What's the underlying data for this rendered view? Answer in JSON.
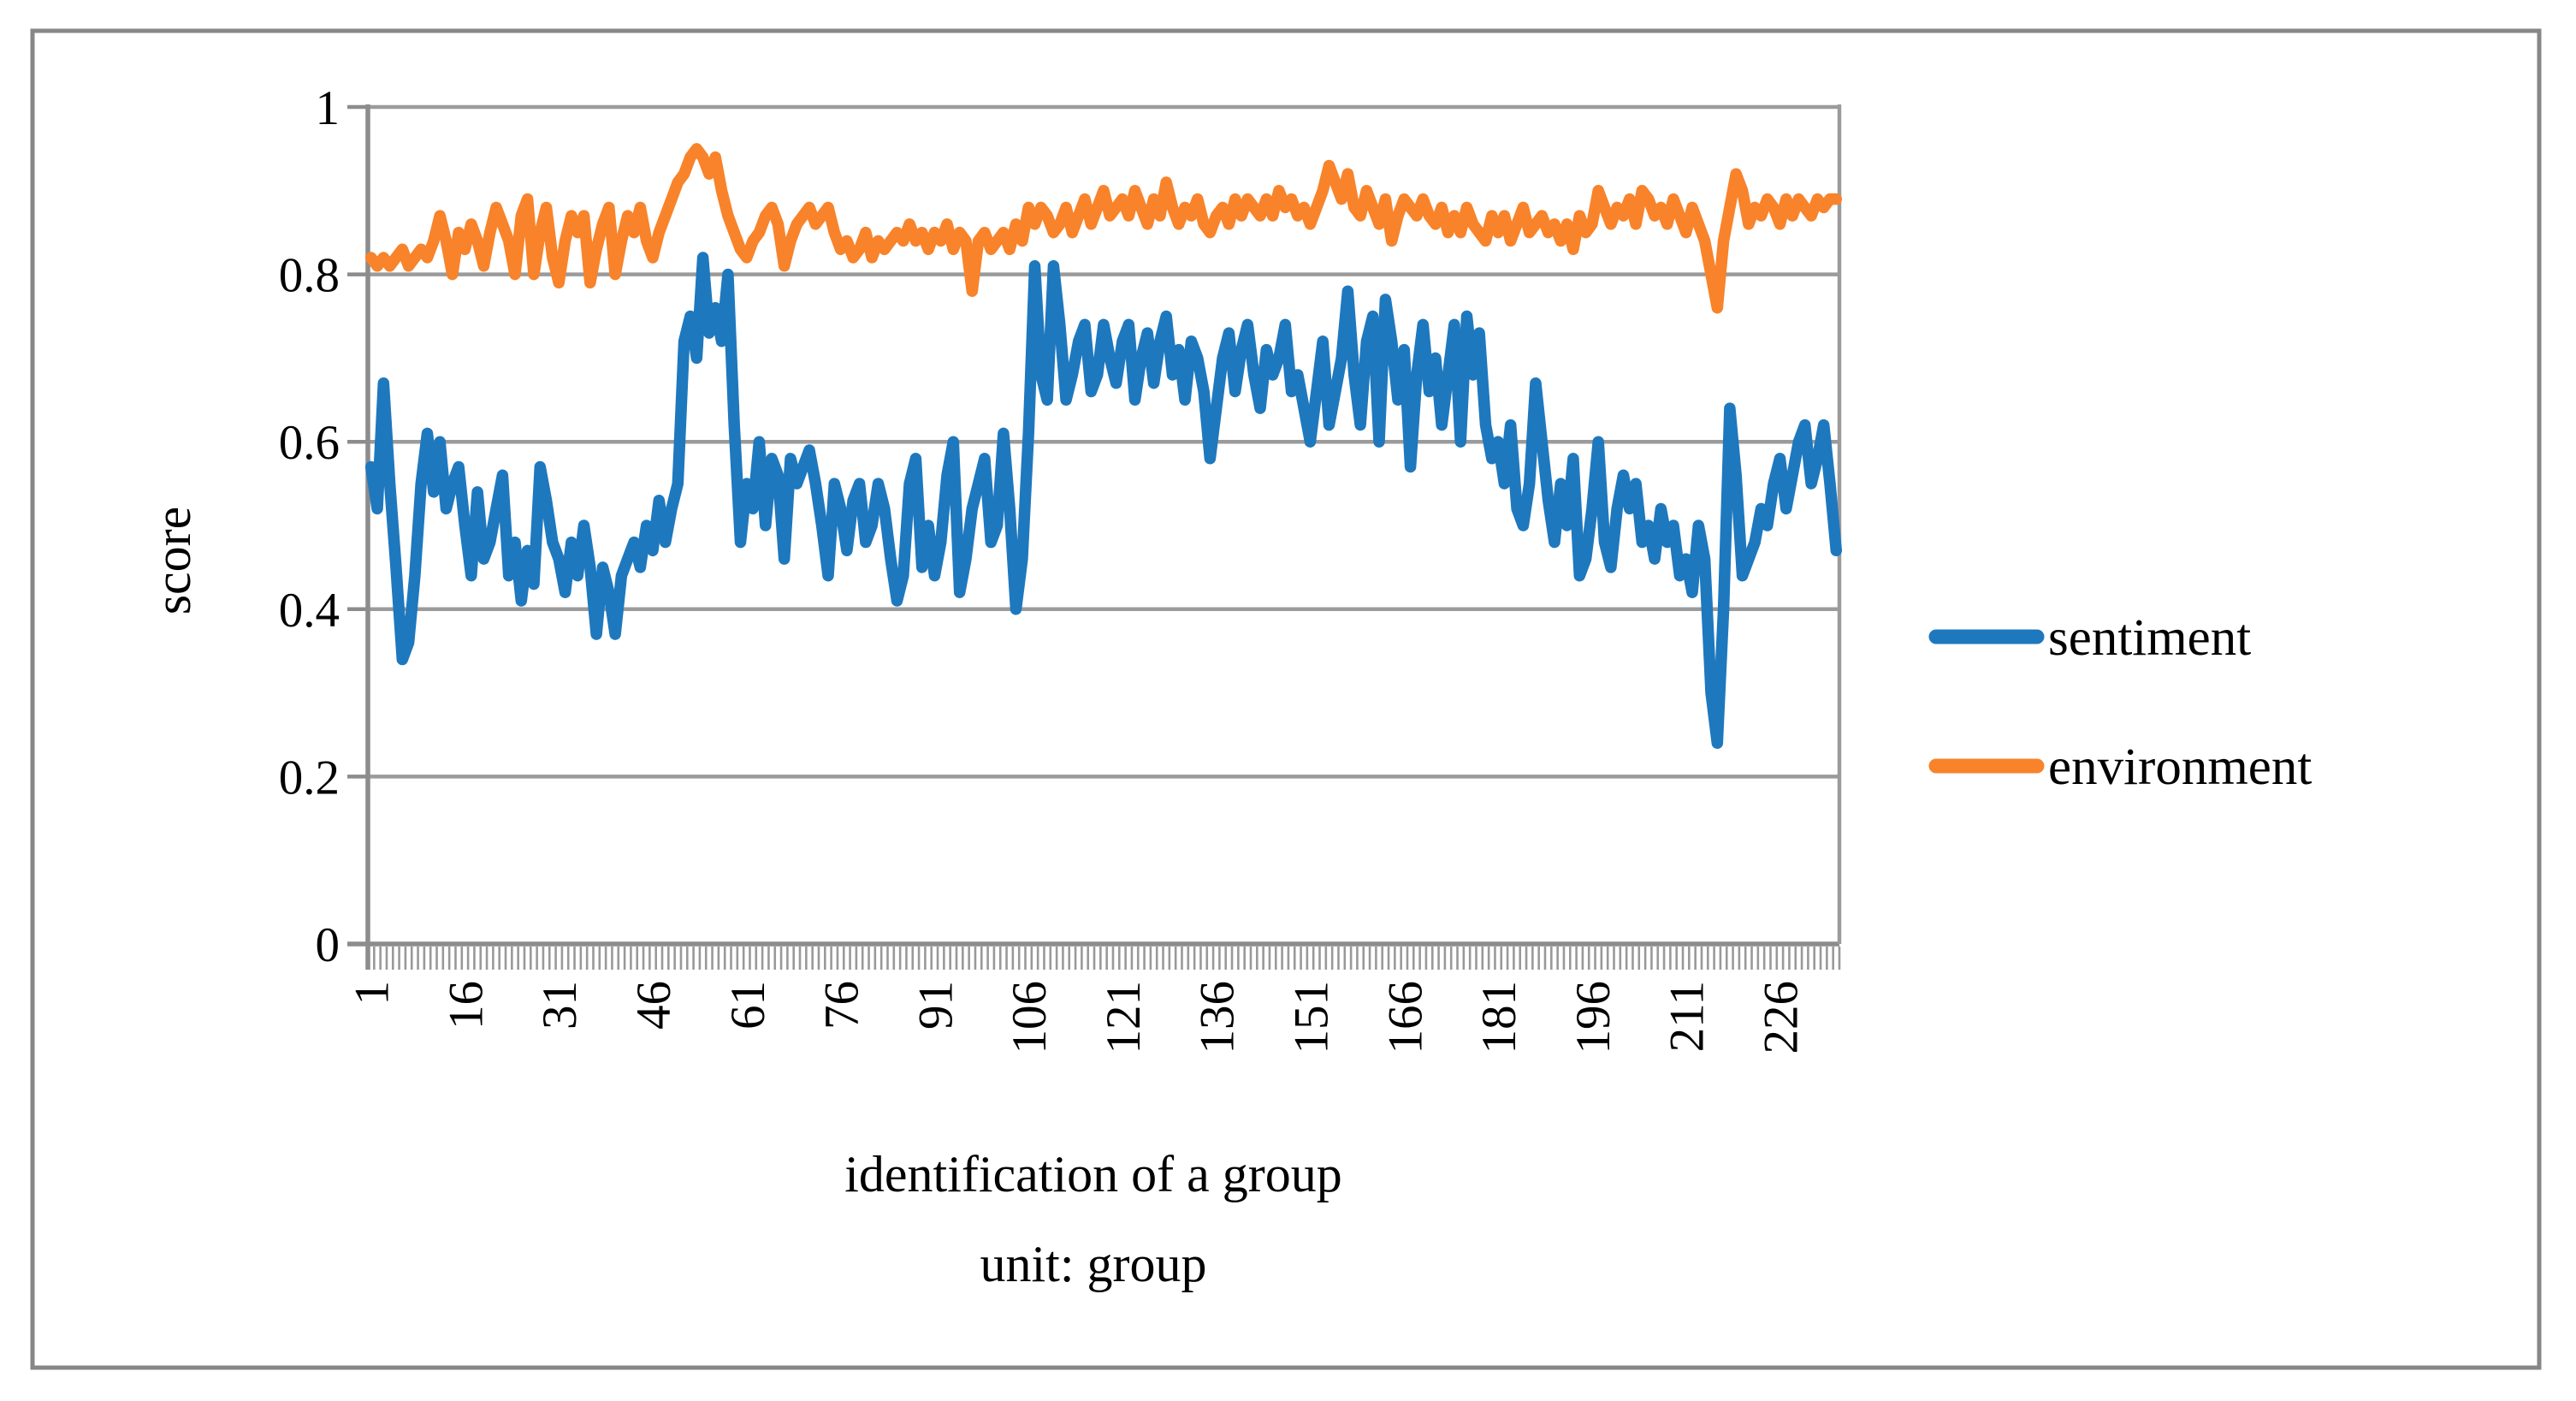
{
  "figure": {
    "background_color": "#FFFFFF",
    "border_color": "#878787",
    "axis_color": "#8C8C8C",
    "grid_color": "#9B9B9B",
    "tick_color": "#999999"
  },
  "chart_data": {
    "type": "line",
    "title": "",
    "xlabel_line1": "identification of a group",
    "xlabel_line2": "unit: group",
    "ylabel": "score",
    "x_tick_labels": [
      "1",
      "16",
      "31",
      "46",
      "61",
      "76",
      "91",
      "106",
      "121",
      "136",
      "151",
      "166",
      "181",
      "196",
      "211",
      "226"
    ],
    "x_tick_interval": 15,
    "n_points": 235,
    "xlim": [
      1,
      235
    ],
    "ylim": [
      0,
      1
    ],
    "y_ticks": [
      "1",
      "0.8",
      "0.6",
      "0.4",
      "0.2",
      "0"
    ],
    "y_tick_values": [
      1,
      0.8,
      0.6,
      0.4,
      0.2,
      0
    ],
    "grid": "horizontal",
    "legend_position": "right",
    "series": [
      {
        "name": "sentiment",
        "color": "#1E78BE",
        "values": [
          0.57,
          0.52,
          0.67,
          0.55,
          0.45,
          0.34,
          0.36,
          0.44,
          0.55,
          0.61,
          0.54,
          0.6,
          0.52,
          0.55,
          0.57,
          0.5,
          0.44,
          0.54,
          0.46,
          0.48,
          0.52,
          0.56,
          0.44,
          0.48,
          0.41,
          0.47,
          0.43,
          0.57,
          0.53,
          0.48,
          0.46,
          0.42,
          0.48,
          0.44,
          0.5,
          0.45,
          0.37,
          0.45,
          0.42,
          0.37,
          0.44,
          0.46,
          0.48,
          0.45,
          0.5,
          0.47,
          0.53,
          0.48,
          0.52,
          0.55,
          0.72,
          0.75,
          0.7,
          0.82,
          0.73,
          0.76,
          0.72,
          0.8,
          0.62,
          0.48,
          0.55,
          0.52,
          0.6,
          0.5,
          0.58,
          0.56,
          0.46,
          0.58,
          0.55,
          0.57,
          0.59,
          0.55,
          0.5,
          0.44,
          0.55,
          0.52,
          0.47,
          0.53,
          0.55,
          0.48,
          0.5,
          0.55,
          0.52,
          0.46,
          0.41,
          0.44,
          0.55,
          0.58,
          0.45,
          0.5,
          0.44,
          0.48,
          0.56,
          0.6,
          0.42,
          0.46,
          0.52,
          0.55,
          0.58,
          0.48,
          0.5,
          0.61,
          0.52,
          0.4,
          0.46,
          0.61,
          0.81,
          0.68,
          0.65,
          0.81,
          0.74,
          0.65,
          0.68,
          0.72,
          0.74,
          0.66,
          0.68,
          0.74,
          0.7,
          0.67,
          0.72,
          0.74,
          0.65,
          0.7,
          0.73,
          0.67,
          0.72,
          0.75,
          0.68,
          0.71,
          0.65,
          0.72,
          0.7,
          0.66,
          0.58,
          0.64,
          0.7,
          0.73,
          0.66,
          0.71,
          0.74,
          0.68,
          0.64,
          0.71,
          0.68,
          0.7,
          0.74,
          0.66,
          0.68,
          0.64,
          0.6,
          0.66,
          0.72,
          0.62,
          0.66,
          0.7,
          0.78,
          0.68,
          0.62,
          0.72,
          0.75,
          0.6,
          0.77,
          0.72,
          0.65,
          0.71,
          0.57,
          0.68,
          0.74,
          0.66,
          0.7,
          0.62,
          0.68,
          0.74,
          0.6,
          0.75,
          0.68,
          0.73,
          0.62,
          0.58,
          0.6,
          0.55,
          0.62,
          0.52,
          0.5,
          0.55,
          0.67,
          0.6,
          0.53,
          0.48,
          0.55,
          0.5,
          0.58,
          0.44,
          0.46,
          0.52,
          0.6,
          0.48,
          0.45,
          0.52,
          0.56,
          0.52,
          0.55,
          0.48,
          0.5,
          0.46,
          0.52,
          0.48,
          0.5,
          0.44,
          0.46,
          0.42,
          0.5,
          0.46,
          0.3,
          0.24,
          0.4,
          0.64,
          0.56,
          0.44,
          0.46,
          0.48,
          0.52,
          0.5,
          0.55,
          0.58,
          0.52,
          0.56,
          0.6,
          0.62,
          0.55,
          0.58,
          0.62,
          0.55,
          0.47
        ]
      },
      {
        "name": "environment",
        "color": "#F8832A",
        "values": [
          0.82,
          0.81,
          0.82,
          0.81,
          0.82,
          0.83,
          0.81,
          0.82,
          0.83,
          0.82,
          0.84,
          0.87,
          0.84,
          0.8,
          0.85,
          0.83,
          0.86,
          0.84,
          0.81,
          0.85,
          0.88,
          0.86,
          0.84,
          0.8,
          0.87,
          0.89,
          0.8,
          0.85,
          0.88,
          0.82,
          0.79,
          0.84,
          0.87,
          0.85,
          0.87,
          0.79,
          0.83,
          0.86,
          0.88,
          0.8,
          0.84,
          0.87,
          0.85,
          0.88,
          0.84,
          0.82,
          0.85,
          0.87,
          0.89,
          0.91,
          0.92,
          0.94,
          0.95,
          0.94,
          0.92,
          0.94,
          0.9,
          0.87,
          0.85,
          0.83,
          0.82,
          0.84,
          0.85,
          0.87,
          0.88,
          0.86,
          0.81,
          0.84,
          0.86,
          0.87,
          0.88,
          0.86,
          0.87,
          0.88,
          0.85,
          0.83,
          0.84,
          0.82,
          0.83,
          0.85,
          0.82,
          0.84,
          0.83,
          0.84,
          0.85,
          0.84,
          0.86,
          0.84,
          0.85,
          0.83,
          0.85,
          0.84,
          0.86,
          0.83,
          0.85,
          0.84,
          0.78,
          0.84,
          0.85,
          0.83,
          0.84,
          0.85,
          0.83,
          0.86,
          0.84,
          0.88,
          0.86,
          0.88,
          0.87,
          0.85,
          0.86,
          0.88,
          0.85,
          0.87,
          0.89,
          0.86,
          0.88,
          0.9,
          0.87,
          0.88,
          0.89,
          0.87,
          0.9,
          0.88,
          0.86,
          0.89,
          0.87,
          0.91,
          0.88,
          0.86,
          0.88,
          0.87,
          0.89,
          0.86,
          0.85,
          0.87,
          0.88,
          0.86,
          0.89,
          0.87,
          0.89,
          0.88,
          0.87,
          0.89,
          0.87,
          0.9,
          0.88,
          0.89,
          0.87,
          0.88,
          0.86,
          0.88,
          0.9,
          0.93,
          0.91,
          0.89,
          0.92,
          0.88,
          0.87,
          0.9,
          0.88,
          0.86,
          0.89,
          0.84,
          0.87,
          0.89,
          0.88,
          0.87,
          0.89,
          0.87,
          0.86,
          0.88,
          0.85,
          0.87,
          0.85,
          0.88,
          0.86,
          0.85,
          0.84,
          0.87,
          0.85,
          0.87,
          0.84,
          0.86,
          0.88,
          0.85,
          0.86,
          0.87,
          0.85,
          0.86,
          0.84,
          0.86,
          0.83,
          0.87,
          0.85,
          0.86,
          0.9,
          0.88,
          0.86,
          0.88,
          0.87,
          0.89,
          0.86,
          0.9,
          0.89,
          0.87,
          0.88,
          0.86,
          0.89,
          0.87,
          0.85,
          0.88,
          0.86,
          0.84,
          0.8,
          0.76,
          0.84,
          0.88,
          0.92,
          0.9,
          0.86,
          0.88,
          0.87,
          0.89,
          0.88,
          0.86,
          0.89,
          0.87,
          0.89,
          0.88,
          0.87,
          0.89,
          0.88,
          0.89,
          0.89
        ]
      }
    ]
  }
}
